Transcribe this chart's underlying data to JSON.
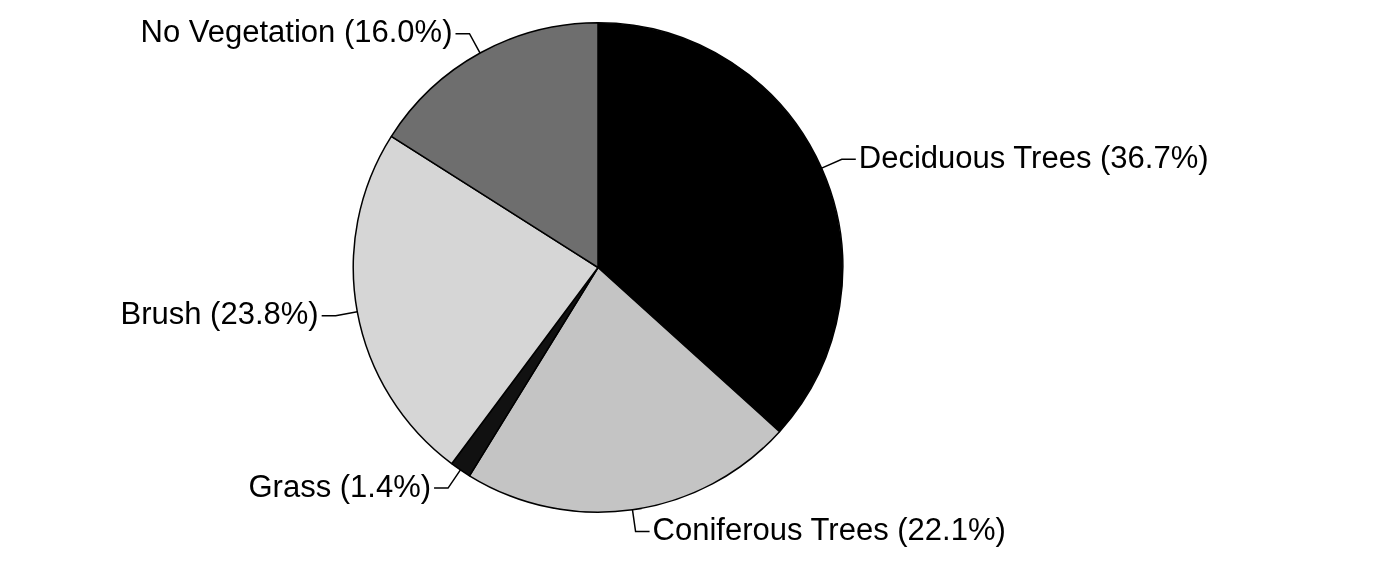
{
  "chart_data": {
    "type": "pie",
    "categories": [
      "Deciduous Trees (36.7%)",
      "Coniferous Trees (22.1%)",
      "Grass (1.4%)",
      "Brush (23.8%)",
      "No Vegetation (16.0%)"
    ],
    "values": [
      36.7,
      22.1,
      1.4,
      23.8,
      16.0
    ],
    "colors": [
      "#000000",
      "#c4c4c4",
      "#111111",
      "#d6d6d6",
      "#6e6e6e"
    ],
    "legend": false
  }
}
